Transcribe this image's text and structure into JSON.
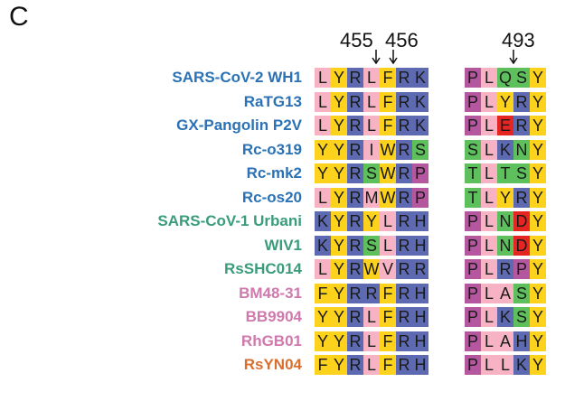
{
  "panel_letter": "C",
  "position_labels": [
    "455",
    "456",
    "493"
  ],
  "colors": {
    "pink": "#f7b3c4",
    "yellow": "#fdd21c",
    "blue": "#5d6ab1",
    "green": "#5ec05c",
    "purple": "#b5579f",
    "red": "#e52522",
    "label_blue": "#2a72b5",
    "label_green": "#3a9c7c",
    "label_pink": "#cf79ad",
    "label_orange": "#d96f2f"
  },
  "rows": [
    {
      "name": "SARS-CoV-2 WH1",
      "group": "label_blue",
      "left": "LYRLFRK",
      "right": "PLQSY"
    },
    {
      "name": "RaTG13",
      "group": "label_blue",
      "left": "LYRLFRK",
      "right": "PLYRY"
    },
    {
      "name": "GX-Pangolin P2V",
      "group": "label_blue",
      "left": "LYRLFRK",
      "right": "PLERY"
    },
    {
      "name": "Rc-o319",
      "group": "label_blue",
      "left": "YYRIWRS",
      "right": "SLKNY"
    },
    {
      "name": "Rc-mk2",
      "group": "label_blue",
      "left": "YYRSWRP",
      "right": "TLTSY"
    },
    {
      "name": "Rc-os20",
      "group": "label_blue",
      "left": "LYRMWRP",
      "right": "TLYRY"
    },
    {
      "name": "SARS-CoV-1 Urbani",
      "group": "label_green",
      "left": "KYRYLRH",
      "right": "PLNDY"
    },
    {
      "name": "WIV1",
      "group": "label_green",
      "left": "KYRSLRH",
      "right": "PLNDY"
    },
    {
      "name": "RsSHC014",
      "group": "label_green",
      "left": "LYRWVRR",
      "right": "PLRPY"
    },
    {
      "name": "BM48-31",
      "group": "label_pink",
      "left": "FYRRFRH",
      "right": "PLASY"
    },
    {
      "name": "BB9904",
      "group": "label_pink",
      "left": "YYRLFRH",
      "right": "PLKSY"
    },
    {
      "name": "RhGB01",
      "group": "label_pink",
      "left": "YYRLFRH",
      "right": "PLAHY"
    },
    {
      "name": "RsYN04",
      "group": "label_orange",
      "left": "FYRLFRH",
      "right": "PLLKY"
    }
  ],
  "residue_colors": {
    "L": "pink",
    "I": "pink",
    "M": "pink",
    "V": "pink",
    "A": "pink",
    "Y": "yellow",
    "F": "yellow",
    "W": "yellow",
    "R": "blue",
    "K": "blue",
    "H": "blue",
    "S": "green",
    "N": "green",
    "Q": "green",
    "T": "green",
    "P": "purple",
    "E": "red",
    "D": "red"
  }
}
